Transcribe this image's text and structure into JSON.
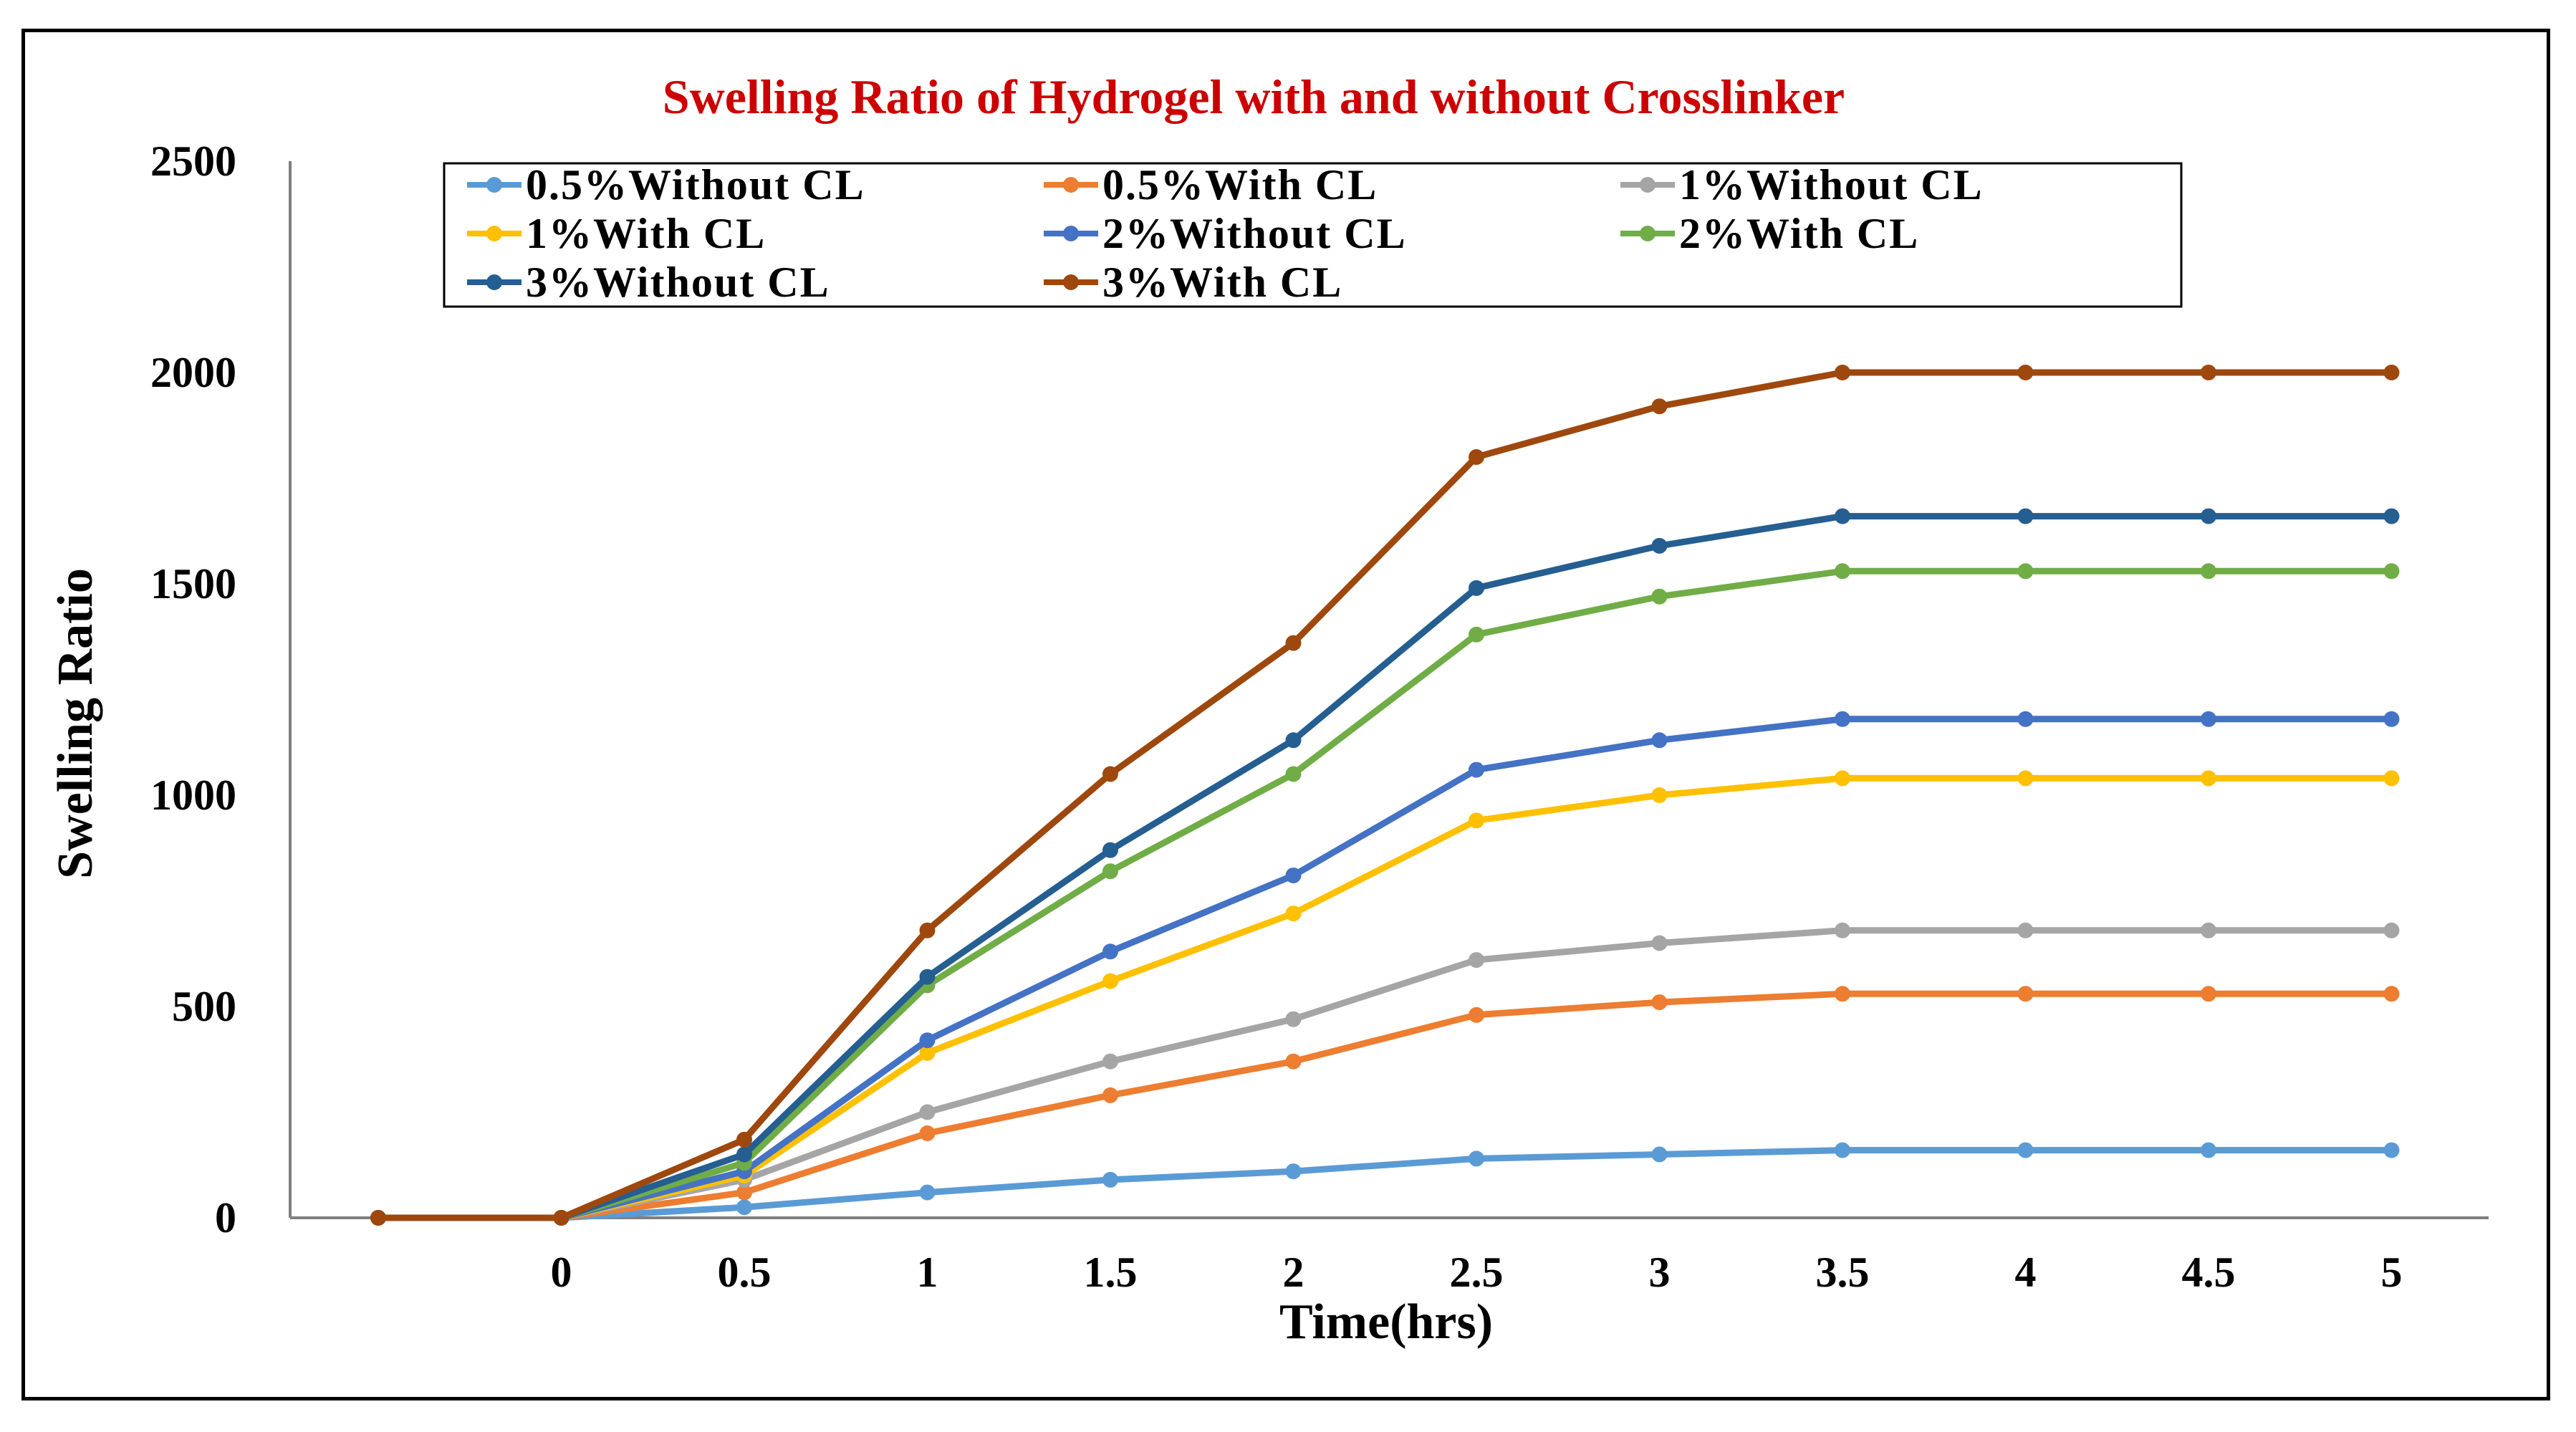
{
  "chart_data": {
    "type": "line",
    "title": "Swelling Ratio of Hydrogel with and without Crosslinker",
    "title_color": "#cc0000",
    "xlabel": "Time(hrs)",
    "ylabel": "Swelling Ratio",
    "ylim": [
      0,
      2500
    ],
    "y_ticks": [
      "0",
      "500",
      "1000",
      "1500",
      "2000",
      "2500"
    ],
    "y_tick_values": [
      0,
      500,
      1000,
      1500,
      2000,
      2500
    ],
    "categories": [
      "",
      "0",
      "0.5",
      "1",
      "1.5",
      "2",
      "2.5",
      "3",
      "3.5",
      "4",
      "4.5",
      "5"
    ],
    "grid": false,
    "legend_position": "top",
    "series": [
      {
        "name": "0.5%Without CL",
        "color": "#5b9bd5",
        "values": [
          0,
          0,
          25,
          60,
          90,
          110,
          140,
          150,
          160,
          160,
          160,
          160
        ]
      },
      {
        "name": "0.5%With CL",
        "color": "#ed7d31",
        "values": [
          0,
          0,
          60,
          200,
          290,
          370,
          480,
          510,
          530,
          530,
          530,
          530
        ]
      },
      {
        "name": "1%Without CL",
        "color": "#a5a5a5",
        "values": [
          0,
          0,
          90,
          250,
          370,
          470,
          610,
          650,
          680,
          680,
          680,
          680
        ]
      },
      {
        "name": "1%With CL",
        "color": "#ffc000",
        "values": [
          0,
          0,
          100,
          390,
          560,
          720,
          940,
          1000,
          1040,
          1040,
          1040,
          1040
        ]
      },
      {
        "name": "2%Without CL",
        "color": "#4472c4",
        "values": [
          0,
          0,
          110,
          420,
          630,
          810,
          1060,
          1130,
          1180,
          1180,
          1180,
          1180
        ]
      },
      {
        "name": "2%With CL",
        "color": "#70ad47",
        "values": [
          0,
          0,
          130,
          550,
          820,
          1050,
          1380,
          1470,
          1530,
          1530,
          1530,
          1530
        ]
      },
      {
        "name": "3%Without CL",
        "color": "#255e91",
        "values": [
          0,
          0,
          150,
          570,
          870,
          1130,
          1490,
          1590,
          1660,
          1660,
          1660,
          1660
        ]
      },
      {
        "name": "3%With CL",
        "color": "#9e480e",
        "values": [
          0,
          0,
          185,
          680,
          1050,
          1360,
          1800,
          1920,
          2000,
          2000,
          2000,
          2000
        ]
      }
    ]
  }
}
